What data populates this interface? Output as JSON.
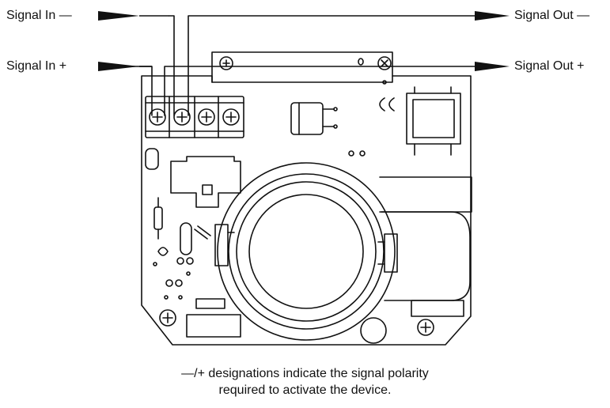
{
  "labels": {
    "signal_in_minus": "Signal In —",
    "signal_in_plus": "Signal In +",
    "signal_out_minus": "Signal Out —",
    "signal_out_plus": "Signal Out +"
  },
  "caption": {
    "line1": "—/+ designations indicate the signal polarity",
    "line2": "required to activate the device."
  }
}
